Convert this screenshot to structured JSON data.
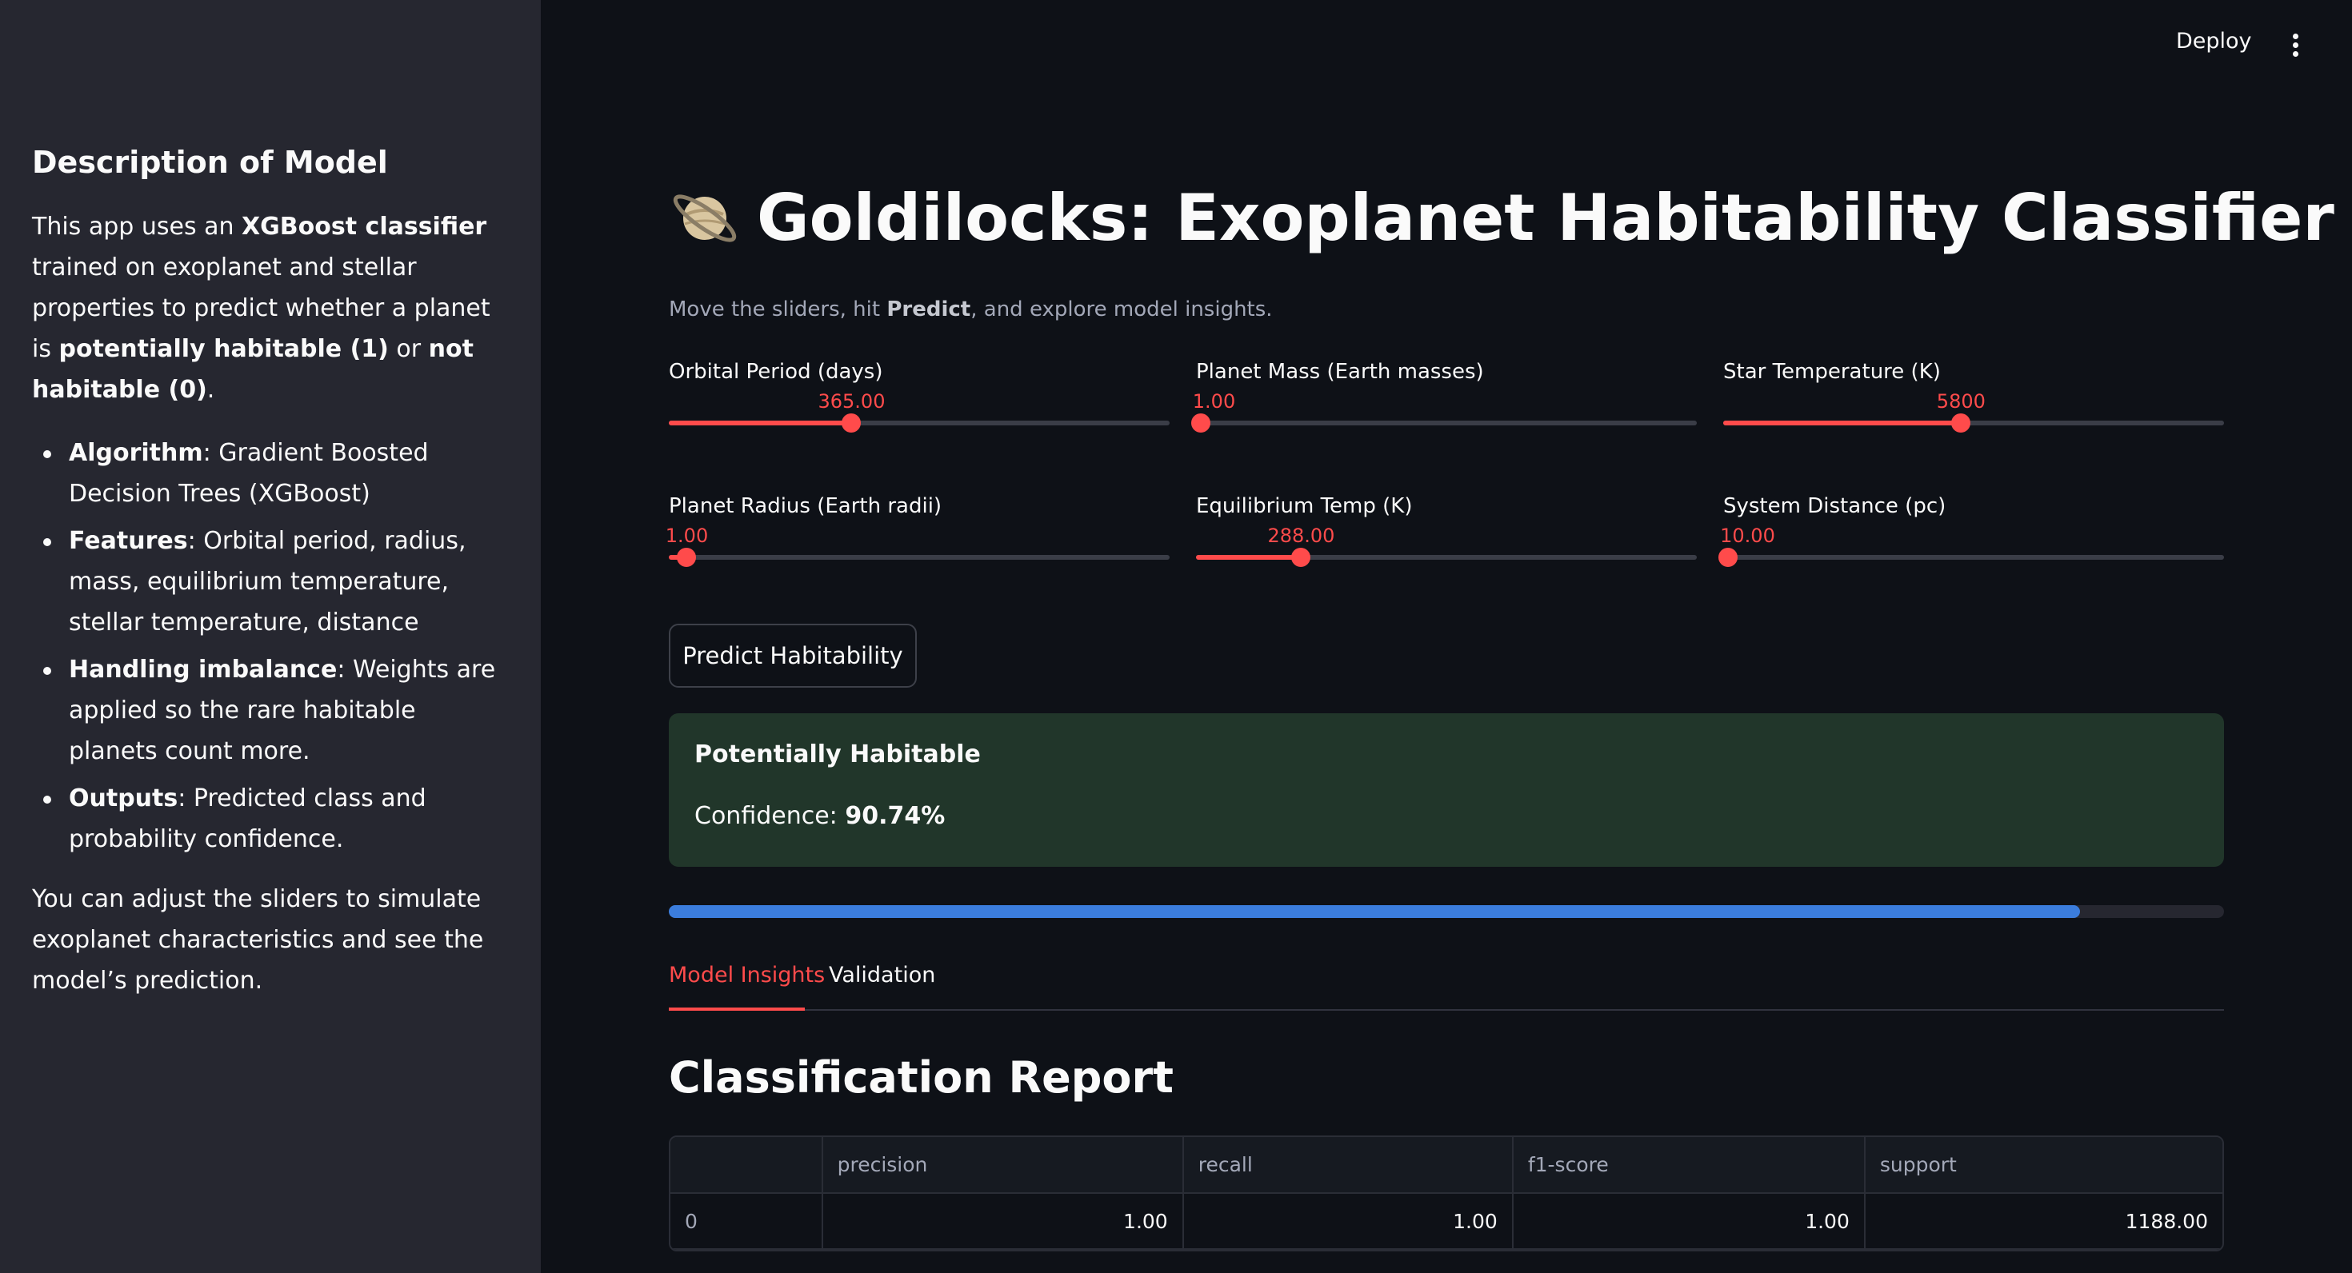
{
  "sidebar": {
    "title": "Description of Model",
    "intro": {
      "t1": "This app uses an ",
      "b1": "XGBoost classifier",
      "t2": " trained on exoplanet and stellar properties to predict whether a planet is ",
      "b2": "potentially habitable (1)",
      "t3": " or ",
      "b3": "not habitable (0)",
      "t4": "."
    },
    "items": [
      {
        "bold": "Algorithm",
        "text": ": Gradient Boosted Decision Trees (XGBoost)"
      },
      {
        "bold": "Features",
        "text": ": Orbital period, radius, mass, equilibrium temperature, stellar temperature, distance"
      },
      {
        "bold": "Handling imbalance",
        "text": ": Weights are applied so the rare habitable planets count more."
      },
      {
        "bold": "Outputs",
        "text": ": Predicted class and probability confidence."
      }
    ],
    "outro": "You can adjust the sliders to simulate exoplanet characteristics and see the model’s prediction."
  },
  "header": {
    "deploy_label": "Deploy",
    "menu_icon": "kebab-menu-icon"
  },
  "main": {
    "icon": "ringed-planet-icon",
    "title": "Goldilocks: Exoplanet Habitability Classifier",
    "subtitle": {
      "t1": "Move the sliders, hit ",
      "b": "Predict",
      "t2": ", and explore model insights."
    },
    "sliders": [
      {
        "label": "Orbital Period (days)",
        "value": "365.00",
        "fraction": 0.365
      },
      {
        "label": "Planet Mass (Earth masses)",
        "value": "1.00",
        "fraction": 0.01
      },
      {
        "label": "Star Temperature (K)",
        "value": "5800",
        "fraction": 0.475
      },
      {
        "label": "Planet Radius (Earth radii)",
        "value": "1.00",
        "fraction": 0.035
      },
      {
        "label": "Equilibrium Temp (K)",
        "value": "288.00",
        "fraction": 0.21
      },
      {
        "label": "System Distance (pc)",
        "value": "10.00",
        "fraction": 0.01
      }
    ],
    "predict_label": "Predict Habitability",
    "result": {
      "status": "Potentially Habitable",
      "confidence_label": "Confidence: ",
      "confidence_value": "90.74%",
      "progress": 0.9074
    },
    "tabs": [
      {
        "label": "Model Insights",
        "active": true
      },
      {
        "label": "Validation",
        "active": false
      }
    ],
    "report": {
      "title": "Classification Report",
      "columns": [
        "",
        "precision",
        "recall",
        "f1-score",
        "support"
      ],
      "rows": [
        [
          "0",
          "1.00",
          "1.00",
          "1.00",
          "1188.00"
        ]
      ]
    }
  },
  "colors": {
    "accent": "#ff4b4b",
    "success_bg": "#21362a",
    "progress": "#3b7ddd"
  }
}
